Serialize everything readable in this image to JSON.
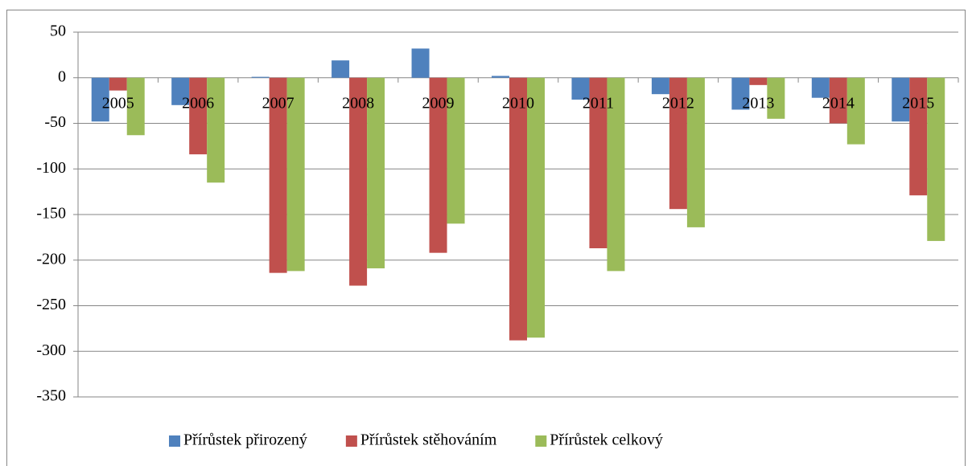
{
  "chart_data": {
    "type": "bar",
    "categories": [
      "2005",
      "2006",
      "2007",
      "2008",
      "2009",
      "2010",
      "2011",
      "2012",
      "2013",
      "2014",
      "2015"
    ],
    "series": [
      {
        "name": "Přírůstek přirozený",
        "color": "#4f81bd",
        "values": [
          -48,
          -30,
          1,
          19,
          32,
          2,
          -24,
          -18,
          -35,
          -22,
          -48
        ]
      },
      {
        "name": "Přírůstek stěhováním",
        "color": "#c0504d",
        "values": [
          -14,
          -84,
          -214,
          -228,
          -192,
          -288,
          -187,
          -144,
          -8,
          -50,
          -129
        ]
      },
      {
        "name": "Přírůstek celkový",
        "color": "#9bbb59",
        "values": [
          -63,
          -115,
          -212,
          -209,
          -160,
          -285,
          -212,
          -164,
          -45,
          -73,
          -179
        ]
      }
    ],
    "ylim": [
      -350,
      50
    ],
    "yticks": [
      50,
      0,
      -50,
      -100,
      -150,
      -200,
      -250,
      -300,
      -350
    ],
    "grid": true,
    "legend": "bottom"
  }
}
